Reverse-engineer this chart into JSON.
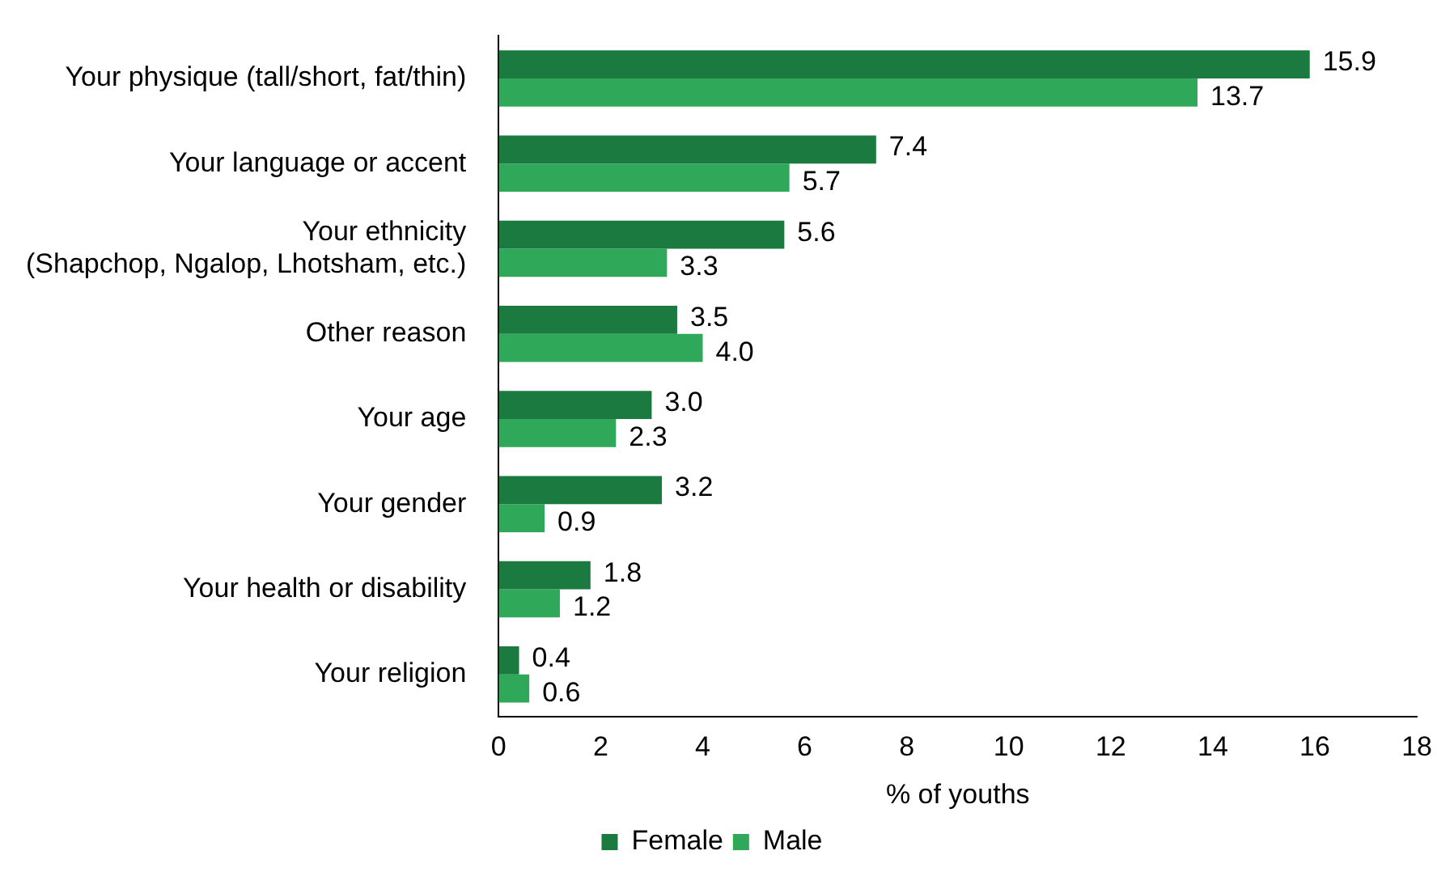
{
  "chart_data": {
    "type": "bar",
    "orientation": "horizontal",
    "xlabel": "% of youths",
    "categories": [
      "Your physique (tall/short, fat/thin)",
      "Your language or accent",
      "Your ethnicity (Shapchop, Ngalop, Lhotsham, etc.)",
      "Other reason",
      "Your age",
      "Your gender",
      "Your health or disability",
      "Your religion"
    ],
    "series": [
      {
        "name": "Female",
        "color": "#1a7a40",
        "values": [
          15.9,
          7.4,
          5.6,
          3.5,
          3.0,
          3.2,
          1.8,
          0.4
        ],
        "value_labels": [
          "15.9",
          "7.4",
          "5.6",
          "3.5",
          "3.0",
          "3.2",
          "1.8",
          "0.4"
        ]
      },
      {
        "name": "Male",
        "color": "#2fa85a",
        "values": [
          13.7,
          5.7,
          3.3,
          4.0,
          2.3,
          0.9,
          1.2,
          0.6
        ],
        "value_labels": [
          "13.7",
          "5.7",
          "3.3",
          "4.0",
          "2.3",
          "0.9",
          "1.2",
          "0.6"
        ]
      }
    ],
    "xlim": [
      0,
      18
    ],
    "xticks": [
      0,
      2,
      4,
      6,
      8,
      10,
      12,
      14,
      16,
      18
    ],
    "grid": false,
    "legend": "bottom"
  }
}
